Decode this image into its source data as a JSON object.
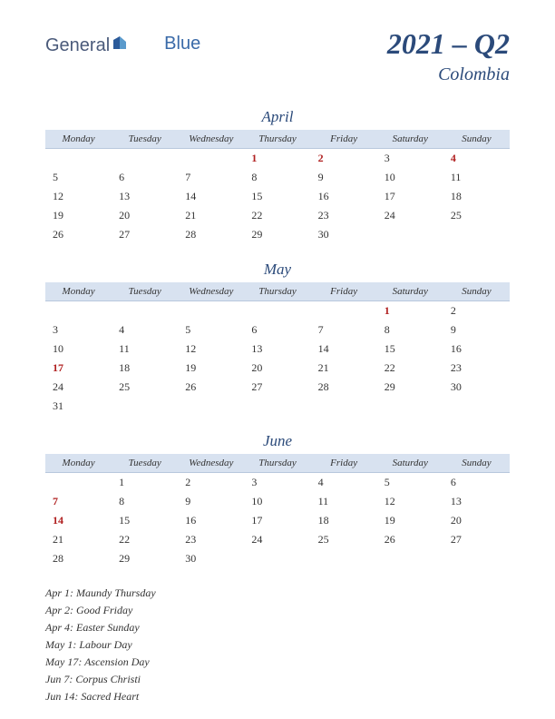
{
  "logo": {
    "part1": "General",
    "part2": "Blue"
  },
  "title": "2021 – Q2",
  "country": "Colombia",
  "day_headers": [
    "Monday",
    "Tuesday",
    "Wednesday",
    "Thursday",
    "Friday",
    "Saturday",
    "Sunday"
  ],
  "colors": {
    "header_bg": "#d8e2f0",
    "title_color": "#2b4a7a",
    "holiday_color": "#b02020",
    "text_color": "#333333",
    "logo_color": "#4a5a7a",
    "logo_blue": "#3a6aa8"
  },
  "months": [
    {
      "name": "April",
      "weeks": [
        [
          null,
          null,
          null,
          {
            "d": 1,
            "h": true
          },
          {
            "d": 2,
            "h": true
          },
          {
            "d": 3
          },
          {
            "d": 4,
            "h": true
          }
        ],
        [
          {
            "d": 5
          },
          {
            "d": 6
          },
          {
            "d": 7
          },
          {
            "d": 8
          },
          {
            "d": 9
          },
          {
            "d": 10
          },
          {
            "d": 11
          }
        ],
        [
          {
            "d": 12
          },
          {
            "d": 13
          },
          {
            "d": 14
          },
          {
            "d": 15
          },
          {
            "d": 16
          },
          {
            "d": 17
          },
          {
            "d": 18
          }
        ],
        [
          {
            "d": 19
          },
          {
            "d": 20
          },
          {
            "d": 21
          },
          {
            "d": 22
          },
          {
            "d": 23
          },
          {
            "d": 24
          },
          {
            "d": 25
          }
        ],
        [
          {
            "d": 26
          },
          {
            "d": 27
          },
          {
            "d": 28
          },
          {
            "d": 29
          },
          {
            "d": 30
          },
          null,
          null
        ]
      ]
    },
    {
      "name": "May",
      "weeks": [
        [
          null,
          null,
          null,
          null,
          null,
          {
            "d": 1,
            "h": true
          },
          {
            "d": 2
          }
        ],
        [
          {
            "d": 3
          },
          {
            "d": 4
          },
          {
            "d": 5
          },
          {
            "d": 6
          },
          {
            "d": 7
          },
          {
            "d": 8
          },
          {
            "d": 9
          }
        ],
        [
          {
            "d": 10
          },
          {
            "d": 11
          },
          {
            "d": 12
          },
          {
            "d": 13
          },
          {
            "d": 14
          },
          {
            "d": 15
          },
          {
            "d": 16
          }
        ],
        [
          {
            "d": 17,
            "h": true
          },
          {
            "d": 18
          },
          {
            "d": 19
          },
          {
            "d": 20
          },
          {
            "d": 21
          },
          {
            "d": 22
          },
          {
            "d": 23
          }
        ],
        [
          {
            "d": 24
          },
          {
            "d": 25
          },
          {
            "d": 26
          },
          {
            "d": 27
          },
          {
            "d": 28
          },
          {
            "d": 29
          },
          {
            "d": 30
          }
        ],
        [
          {
            "d": 31
          },
          null,
          null,
          null,
          null,
          null,
          null
        ]
      ]
    },
    {
      "name": "June",
      "weeks": [
        [
          null,
          {
            "d": 1
          },
          {
            "d": 2
          },
          {
            "d": 3
          },
          {
            "d": 4
          },
          {
            "d": 5
          },
          {
            "d": 6
          }
        ],
        [
          {
            "d": 7,
            "h": true
          },
          {
            "d": 8
          },
          {
            "d": 9
          },
          {
            "d": 10
          },
          {
            "d": 11
          },
          {
            "d": 12
          },
          {
            "d": 13
          }
        ],
        [
          {
            "d": 14,
            "h": true
          },
          {
            "d": 15
          },
          {
            "d": 16
          },
          {
            "d": 17
          },
          {
            "d": 18
          },
          {
            "d": 19
          },
          {
            "d": 20
          }
        ],
        [
          {
            "d": 21
          },
          {
            "d": 22
          },
          {
            "d": 23
          },
          {
            "d": 24
          },
          {
            "d": 25
          },
          {
            "d": 26
          },
          {
            "d": 27
          }
        ],
        [
          {
            "d": 28
          },
          {
            "d": 29
          },
          {
            "d": 30
          },
          null,
          null,
          null,
          null
        ]
      ]
    }
  ],
  "holidays": [
    "Apr 1: Maundy Thursday",
    "Apr 2: Good Friday",
    "Apr 4: Easter Sunday",
    "May 1: Labour Day",
    "May 17: Ascension Day",
    "Jun 7: Corpus Christi",
    "Jun 14: Sacred Heart"
  ]
}
